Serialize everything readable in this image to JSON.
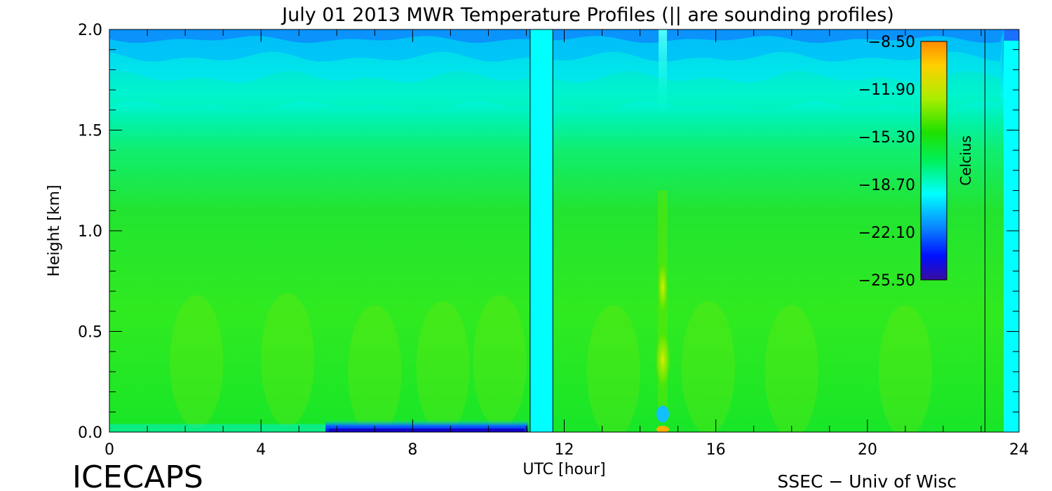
{
  "footer": {
    "left_label": "ICECAPS",
    "right_label": "SSEC - Univ of Wisc"
  },
  "colors": {
    "background": "#ffffff",
    "colormap": [
      "#3a0ca0",
      "#0010ff",
      "#0a86ff",
      "#00ffff",
      "#00f05a",
      "#20e000",
      "#aaee00",
      "#ffd000",
      "#ff8a00"
    ]
  },
  "chart_data": {
    "type": "heatmap",
    "title": "July 01 2013 MWR Temperature Profiles (|| are sounding profiles)",
    "xlabel": "UTC [hour]",
    "ylabel": "Height [km]",
    "xlim": [
      0,
      24
    ],
    "ylim": [
      0,
      2
    ],
    "x_ticks": [
      0,
      4,
      8,
      12,
      16,
      20,
      24
    ],
    "x_tick_labels": [
      "0",
      "4",
      "8",
      "12",
      "16",
      "20",
      "24"
    ],
    "y_ticks": [
      0,
      0.5,
      1,
      1.5,
      2
    ],
    "y_tick_labels": [
      "0.0",
      "0.5",
      "1.0",
      "1.5",
      "2.0"
    ],
    "colorbar": {
      "label": "Celcius",
      "range": [
        -25.5,
        -8.5
      ],
      "ticks": [
        -8.5,
        -11.9,
        -15.3,
        -18.7,
        -22.1,
        -25.5
      ],
      "tick_labels": [
        "-8.50",
        "-11.90",
        "-15.30",
        "-18.70",
        "-22.10",
        "-25.50"
      ],
      "placement": "top-right inside plot"
    },
    "sounding_times": [
      11.1,
      11.7,
      23.1
    ],
    "data_gaps": [
      [
        11.1,
        11.7
      ],
      [
        23.6,
        24
      ]
    ],
    "profile_notes": "Temperature ~ -16.5 C through most of the lowest 1.5 km, cooling to about -19 C near 1.7 km and -21 C near 2.0 km; warm column near 14.6 UTC; cold surface layer (~-24 C) from 5.7 to 11 UTC."
  }
}
